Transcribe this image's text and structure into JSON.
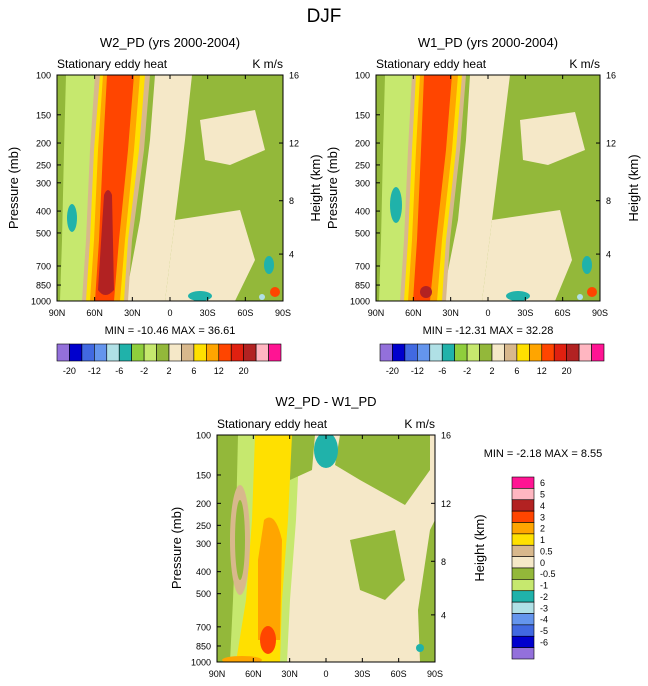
{
  "figure_title": "DJF",
  "chart_data": [
    {
      "type": "contour",
      "title": "W2_PD (yrs 2000-2004)",
      "subtitle_left": "Stationary eddy heat",
      "subtitle_right": "K m/s",
      "ylabel": "Pressure (mb)",
      "ylabel_right": "Height (km)",
      "x_ticks": [
        "90N",
        "60N",
        "30N",
        "0",
        "30S",
        "60S",
        "90S"
      ],
      "y_ticks": [
        "100",
        "150",
        "200",
        "250",
        "300",
        "400",
        "500",
        "700",
        "850",
        "1000"
      ],
      "y_ticks_right": [
        "16",
        "12",
        "8",
        "4"
      ],
      "stats": "MIN = -10.46  MAX =  36.61",
      "min": -10.46,
      "max": 36.61
    },
    {
      "type": "contour",
      "title": "W1_PD (yrs 2000-2004)",
      "subtitle_left": "Stationary eddy heat",
      "subtitle_right": "K m/s",
      "ylabel": "Pressure (mb)",
      "ylabel_right": "Height (km)",
      "x_ticks": [
        "90N",
        "60N",
        "30N",
        "0",
        "30S",
        "60S",
        "90S"
      ],
      "y_ticks": [
        "100",
        "150",
        "200",
        "250",
        "300",
        "400",
        "500",
        "700",
        "850",
        "1000"
      ],
      "y_ticks_right": [
        "16",
        "12",
        "8",
        "4"
      ],
      "stats": "MIN = -12.31  MAX =  32.28",
      "min": -12.31,
      "max": 32.28
    },
    {
      "type": "contour",
      "title": "W2_PD - W1_PD",
      "subtitle_left": "Stationary eddy heat",
      "subtitle_right": "K m/s",
      "ylabel": "Pressure (mb)",
      "ylabel_right": "Height (km)",
      "x_ticks": [
        "90N",
        "60N",
        "30N",
        "0",
        "30S",
        "60S",
        "90S"
      ],
      "y_ticks": [
        "100",
        "150",
        "200",
        "250",
        "300",
        "400",
        "500",
        "700",
        "850",
        "1000"
      ],
      "y_ticks_right": [
        "16",
        "12",
        "8",
        "4"
      ],
      "stats": "MIN =  -2.18  MAX =   8.55",
      "min": -2.18,
      "max": 8.55
    }
  ],
  "colorbar_top": {
    "labels": [
      "-20",
      "-12",
      "-6",
      "-2",
      "2",
      "6",
      "12",
      "20"
    ],
    "colors": [
      "#9370db",
      "#0000cd",
      "#4169e1",
      "#6495ed",
      "#b0e0e6",
      "#20b2aa",
      "#8fce3c",
      "#c6e86e",
      "#93b83a",
      "#f5e8c8",
      "#d8b88c",
      "#ffe000",
      "#ffa500",
      "#ff4500",
      "#e02010",
      "#b22222",
      "#ffb6c1",
      "#ff1493"
    ]
  },
  "colorbar_diff": {
    "labels": [
      "6",
      "5",
      "4",
      "3",
      "2",
      "1",
      "0.5",
      "0",
      "-0.5",
      "-1",
      "-2",
      "-3",
      "-4",
      "-5",
      "-6"
    ],
    "colors": [
      "#ff1493",
      "#ffb6c1",
      "#b22222",
      "#ff4500",
      "#ffa500",
      "#ffe000",
      "#d8b88c",
      "#f5e8c8",
      "#93b83a",
      "#c6e86e",
      "#20b2aa",
      "#b0e0e6",
      "#6495ed",
      "#4169e1",
      "#0000cd",
      "#9370db"
    ]
  }
}
